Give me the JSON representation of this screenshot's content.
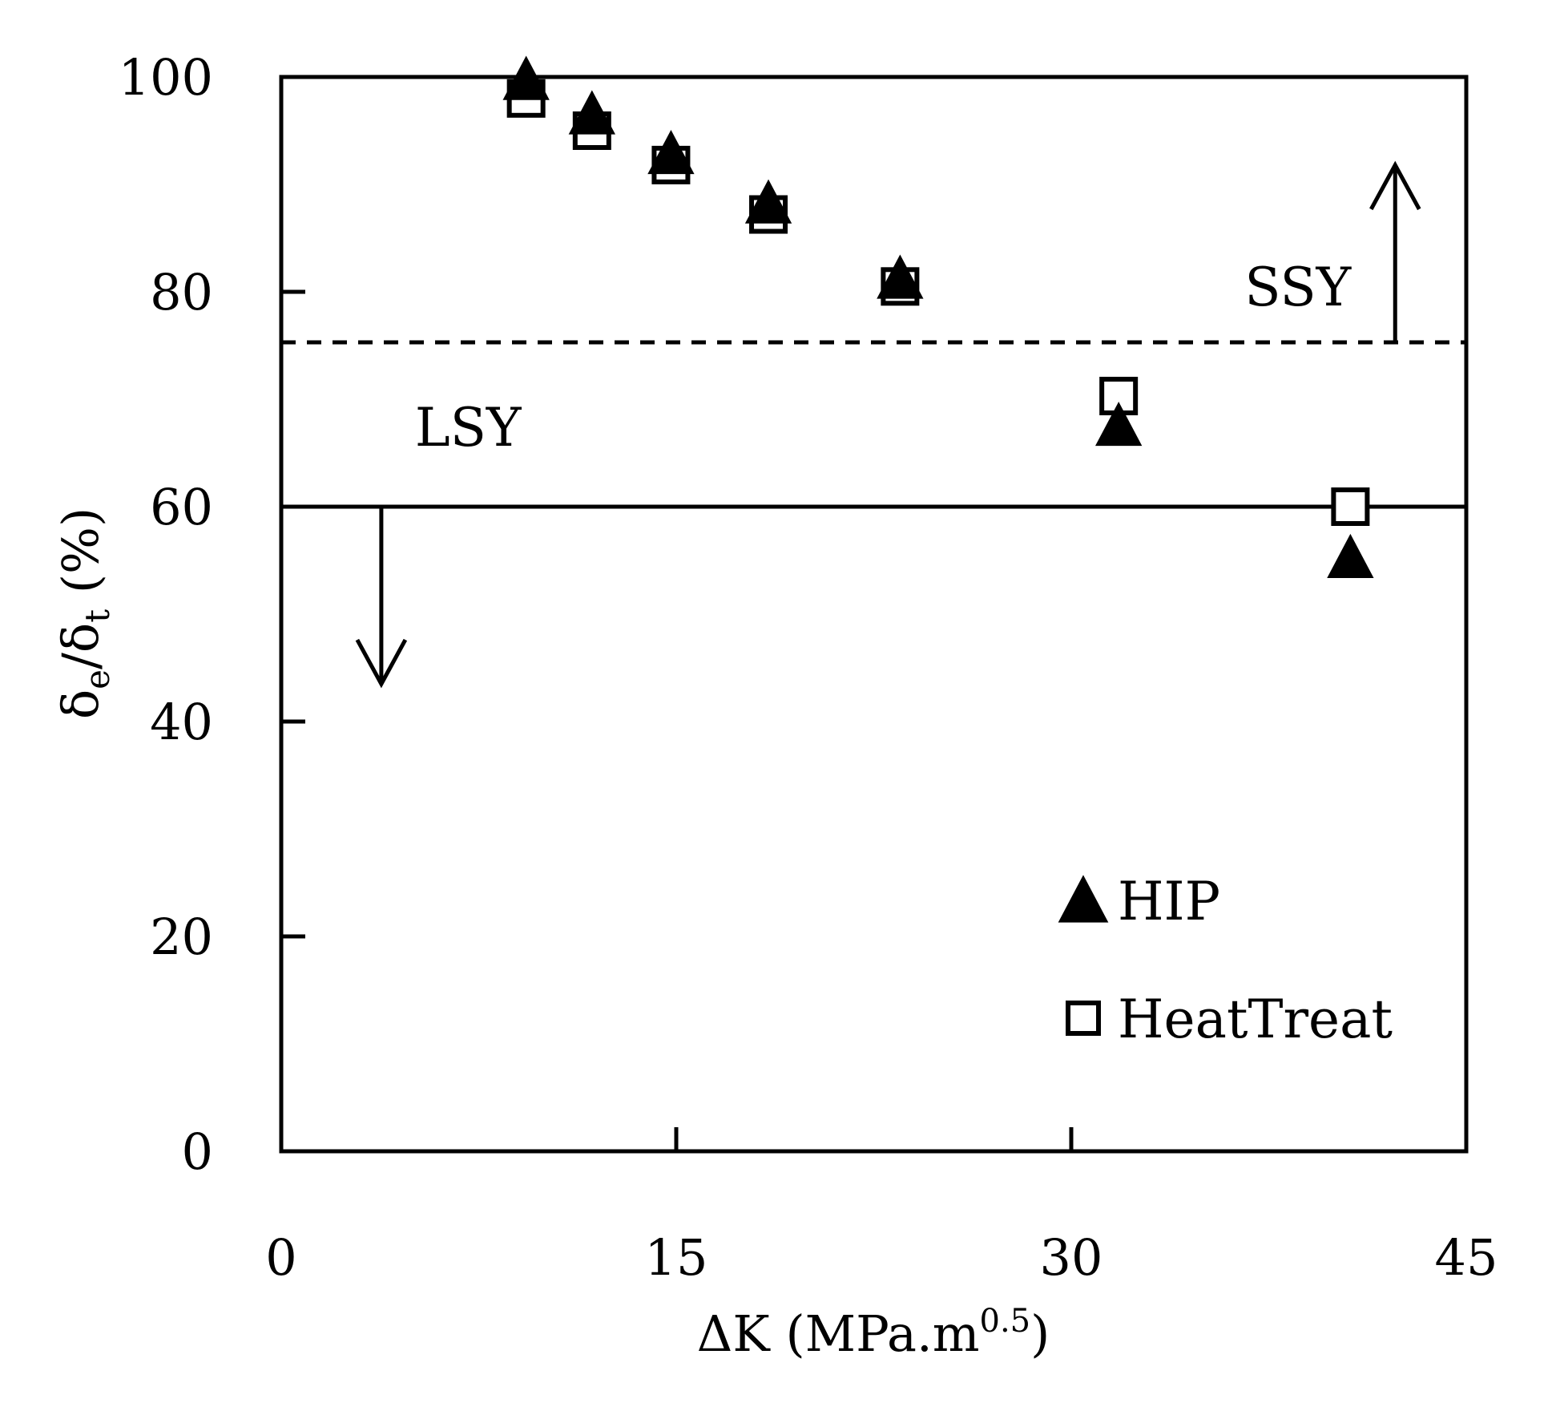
{
  "chart_data": {
    "type": "scatter",
    "xlabel": {
      "main": "ΔK (MPa.m",
      "sup": "0.5",
      "tail": ")"
    },
    "ylabel": {
      "d1": "δ",
      "s1": "e",
      "mid": "/δ",
      "s2": "t",
      "tail": " (%)"
    },
    "xlim": [
      0,
      45
    ],
    "ylim": [
      0,
      100
    ],
    "x_ticks": [
      0,
      15,
      30,
      45
    ],
    "y_ticks": [
      0,
      20,
      40,
      60,
      80,
      100
    ],
    "grid": false,
    "legend_position": "bottom-right",
    "series": [
      {
        "name": "HIP",
        "marker": "filled-triangle",
        "color": "#000000",
        "points": [
          {
            "x": 9.3,
            "y": 99.5
          },
          {
            "x": 11.8,
            "y": 96.3
          },
          {
            "x": 14.8,
            "y": 92.6
          },
          {
            "x": 18.5,
            "y": 88.0
          },
          {
            "x": 23.5,
            "y": 81.0
          },
          {
            "x": 31.8,
            "y": 67.3
          },
          {
            "x": 40.6,
            "y": 55.0
          }
        ]
      },
      {
        "name": "HeatTreat",
        "marker": "open-square",
        "color": "#000000",
        "points": [
          {
            "x": 9.3,
            "y": 98.0
          },
          {
            "x": 11.8,
            "y": 95.0
          },
          {
            "x": 14.8,
            "y": 91.8
          },
          {
            "x": 18.5,
            "y": 87.2
          },
          {
            "x": 23.5,
            "y": 80.5
          },
          {
            "x": 31.8,
            "y": 70.3
          },
          {
            "x": 40.6,
            "y": 60.0
          }
        ]
      }
    ],
    "reference_lines": [
      {
        "y": 75.3,
        "style": "dashed"
      },
      {
        "y": 60.0,
        "style": "solid"
      }
    ],
    "annotations": [
      {
        "text": "SSY",
        "arrow": "up",
        "arrow_x": 42.3,
        "arrow_from_y": 75.3,
        "arrow_to_y": 91.8
      },
      {
        "text": "LSY",
        "arrow": "down",
        "arrow_x": 3.8,
        "arrow_from_y": 60.0,
        "arrow_to_y": 43.5
      }
    ]
  }
}
